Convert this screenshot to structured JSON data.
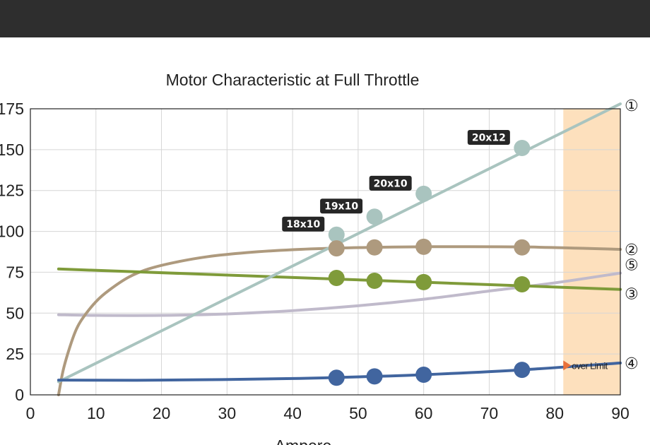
{
  "chart_data": {
    "type": "line",
    "title": "Motor Characteristic at Full Throttle",
    "xlabel": "Ampere",
    "ylabel": "",
    "xlim": [
      0,
      90
    ],
    "ylim": [
      0,
      175
    ],
    "xticks": [
      "0",
      "10",
      "20",
      "30",
      "40",
      "50",
      "60",
      "70",
      "80",
      "90"
    ],
    "yticks": [
      "0",
      "25",
      "50",
      "75",
      "100",
      "125",
      "150",
      "175"
    ],
    "grid": true,
    "over_limit": {
      "label": "over Limit",
      "x_start": 81.3,
      "color": "#fde0bd"
    },
    "series": [
      {
        "marker": "①",
        "color": "#a9c4bf",
        "x": [
          4.3,
          90
        ],
        "y": [
          8,
          178
        ],
        "points": [
          {
            "x": 46.7,
            "y": 98,
            "label": "18x10"
          },
          {
            "x": 52.5,
            "y": 109,
            "label": "19x10"
          },
          {
            "x": 60.0,
            "y": 123,
            "label": "20x10"
          },
          {
            "x": 75.0,
            "y": 151,
            "label": "20x12"
          }
        ]
      },
      {
        "marker": "②",
        "color": "#ae9a7e",
        "x": [
          4.3,
          5,
          6,
          7,
          8,
          10,
          12,
          15,
          18,
          22,
          27,
          33,
          40,
          47,
          52,
          60,
          75,
          90
        ],
        "y": [
          0,
          15,
          29,
          40,
          47,
          57,
          64,
          72,
          77,
          81,
          84.5,
          87,
          88.8,
          89.8,
          90.2,
          90.6,
          90.5,
          89
        ],
        "points": [
          {
            "x": 46.7,
            "y": 89.6
          },
          {
            "x": 52.5,
            "y": 90.2
          },
          {
            "x": 60.0,
            "y": 90.6
          },
          {
            "x": 75.0,
            "y": 90.2
          }
        ]
      },
      {
        "marker": "③",
        "color": "#7f9b3a",
        "x": [
          4.3,
          90
        ],
        "y": [
          77,
          64.5
        ],
        "points": [
          {
            "x": 46.7,
            "y": 71.5
          },
          {
            "x": 52.5,
            "y": 69.8
          },
          {
            "x": 60.0,
            "y": 69
          },
          {
            "x": 75.0,
            "y": 67.6
          }
        ]
      },
      {
        "marker": "④",
        "color": "#41659f",
        "x": [
          4.3,
          20,
          40,
          52.5,
          60,
          75,
          90
        ],
        "y": [
          9,
          9,
          10,
          11.3,
          12.3,
          15.3,
          19.5
        ],
        "points": [
          {
            "x": 46.7,
            "y": 10.5
          },
          {
            "x": 52.5,
            "y": 11.3
          },
          {
            "x": 60.0,
            "y": 12.3
          },
          {
            "x": 75.0,
            "y": 15.3
          }
        ]
      },
      {
        "marker": "⑤",
        "color": "#c0bacb",
        "x": [
          4.3,
          10,
          20,
          30,
          40,
          50,
          60,
          70,
          80,
          90
        ],
        "y": [
          49,
          48.6,
          48.6,
          49.5,
          51.5,
          54.5,
          58.5,
          63.5,
          68.5,
          74.5
        ],
        "points": []
      }
    ]
  }
}
